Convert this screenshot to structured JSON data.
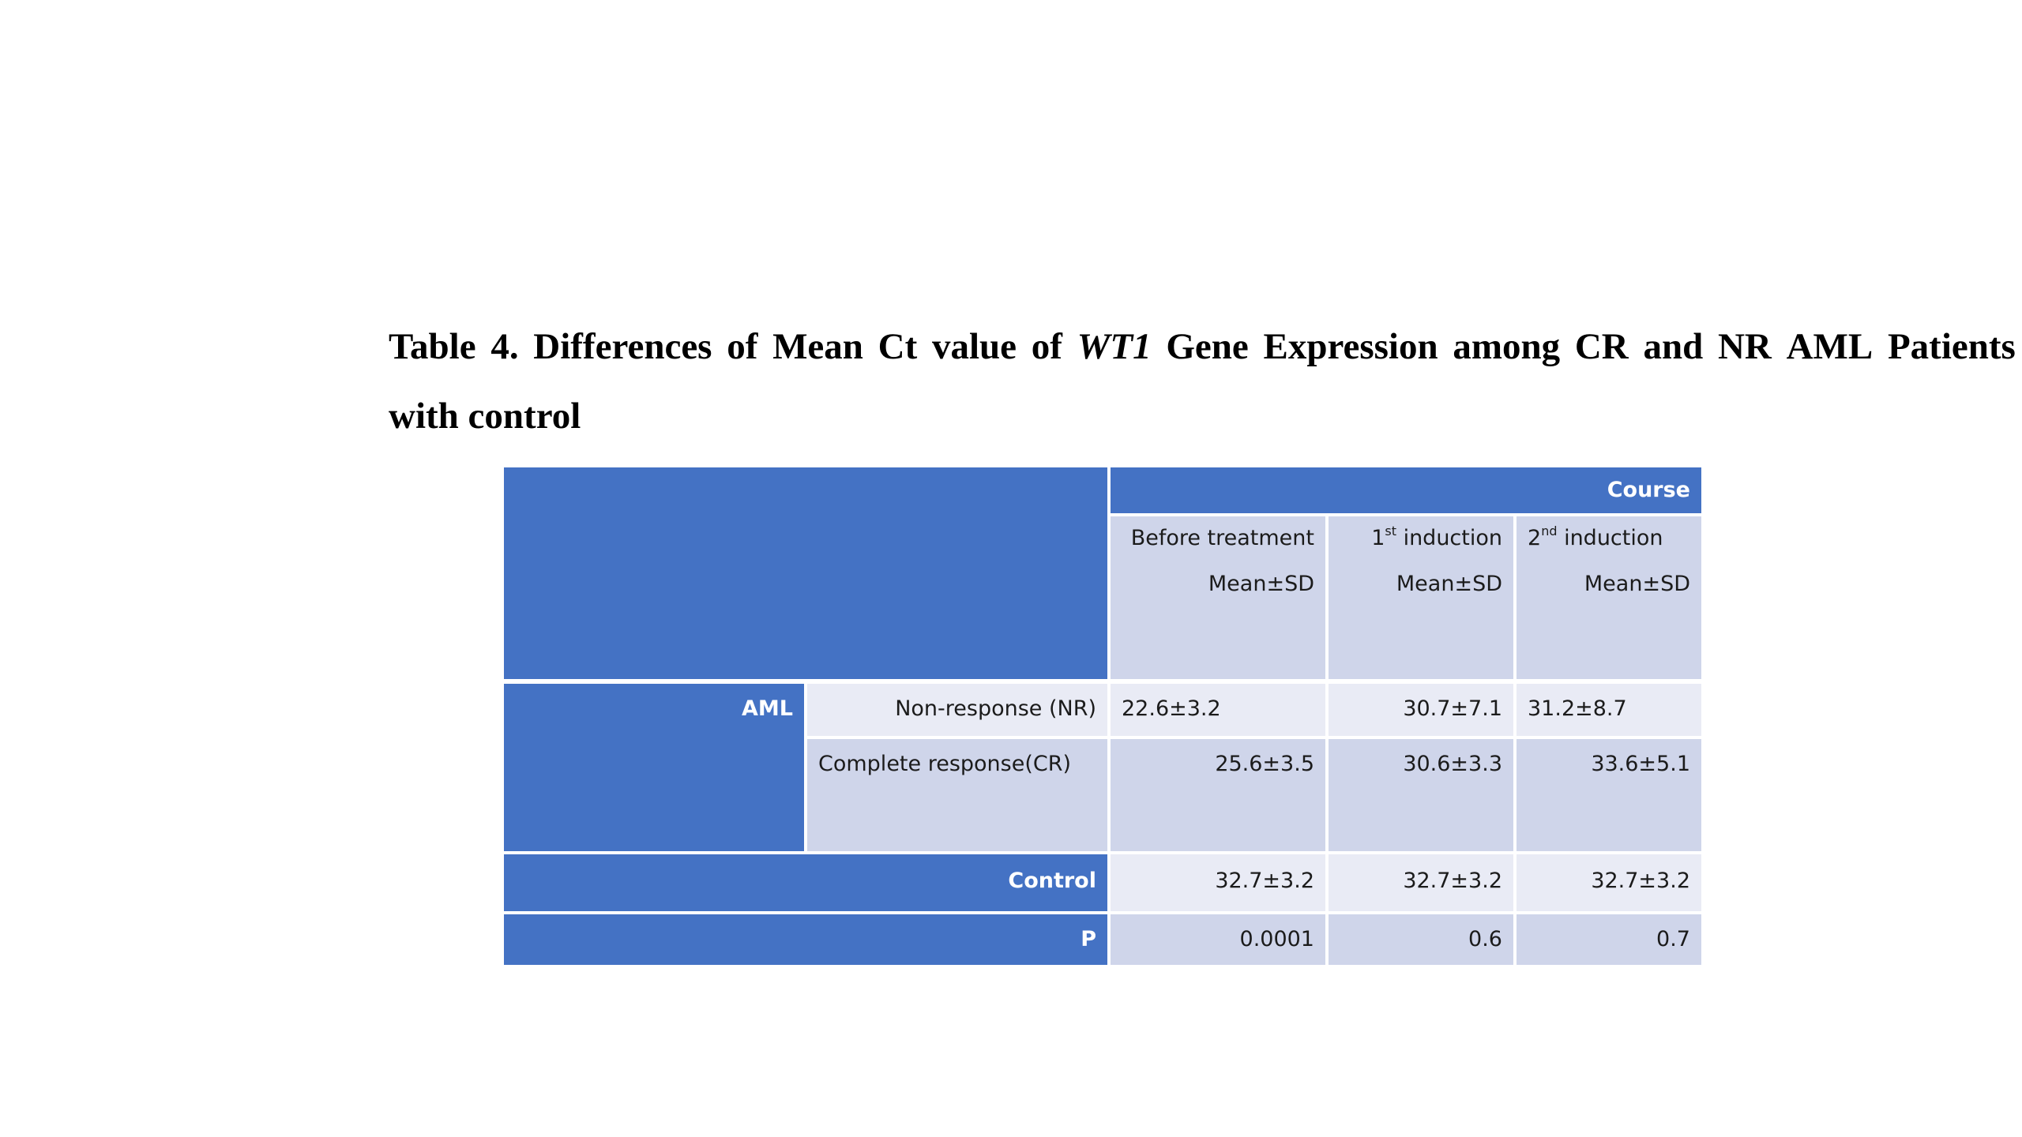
{
  "caption": {
    "words": [
      "Table",
      "4.",
      "Differences",
      "of",
      "Mean",
      "Ct",
      "value",
      "of",
      "WT1",
      "Gene",
      "Expression",
      "among",
      "CR",
      "and",
      "NR",
      "AML",
      "Patients"
    ],
    "line2": "with control"
  },
  "table": {
    "course_header": "Course",
    "columns": [
      {
        "num": "",
        "sup": "",
        "label": "Before treatment",
        "stat": "Mean±SD"
      },
      {
        "num": "1",
        "sup": "st",
        "label": " induction",
        "stat": "Mean±SD"
      },
      {
        "num": "2",
        "sup": "nd",
        "label": " induction",
        "stat": "Mean±SD"
      }
    ],
    "aml_label": "AML",
    "rows": [
      {
        "label": "Non-response (NR)",
        "values": [
          "22.6±3.2",
          "30.7±7.1",
          "31.2±8.7"
        ]
      },
      {
        "label": "Complete response(CR)",
        "values": [
          "25.6±3.5",
          "30.6±3.3",
          "33.6±5.1"
        ]
      },
      {
        "label": "Control",
        "values": [
          "32.7±3.2",
          "32.7±3.2",
          "32.7±3.2"
        ]
      },
      {
        "label": "P",
        "values": [
          "0.0001",
          "0.6",
          "0.7"
        ]
      }
    ]
  }
}
